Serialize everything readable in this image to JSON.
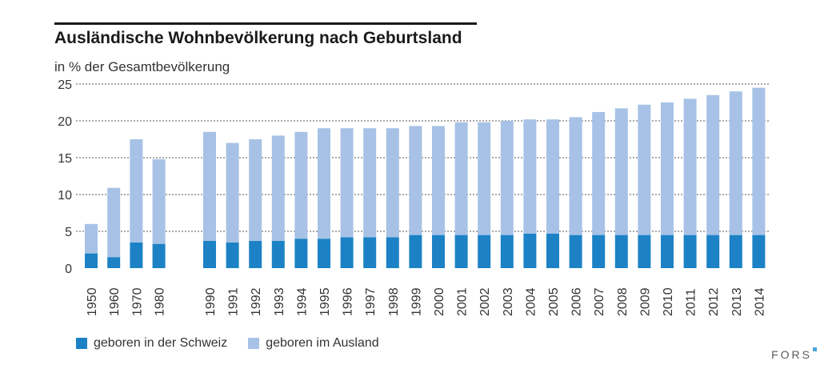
{
  "title": "Ausländische Wohnbevölkerung nach Geburtsland",
  "subtitle": "in % der Gesamtbevölkerung",
  "brand": "FORS",
  "colors": {
    "dark_blue": "#1c82c5",
    "light_blue": "#a7c2e6",
    "grid": "#555555",
    "rule": "#1a1a1a"
  },
  "chart_data": {
    "type": "bar",
    "stacked": true,
    "title": "Ausländische Wohnbevölkerung nach Geburtsland",
    "ylabel": "in % der Gesamtbevölkerung",
    "ylim": [
      0,
      25
    ],
    "yticks": [
      0,
      5,
      10,
      15,
      20,
      25
    ],
    "grid": true,
    "legend_position": "bottom",
    "categories": [
      "1950",
      "1960",
      "1970",
      "1980",
      "1990",
      "1991",
      "1992",
      "1993",
      "1994",
      "1995",
      "1996",
      "1997",
      "1998",
      "1999",
      "2000",
      "2001",
      "2002",
      "2003",
      "2004",
      "2005",
      "2006",
      "2007",
      "2008",
      "2009",
      "2010",
      "2011",
      "2012",
      "2013",
      "2014"
    ],
    "series": [
      {
        "name": "geboren in der Schweiz",
        "color": "#1c82c5",
        "values": [
          2.0,
          1.5,
          3.5,
          3.3,
          3.7,
          3.5,
          3.7,
          3.7,
          4.0,
          4.0,
          4.2,
          4.2,
          4.2,
          4.5,
          4.5,
          4.5,
          4.5,
          4.5,
          4.7,
          4.7,
          4.5,
          4.5,
          4.5,
          4.5,
          4.5,
          4.5,
          4.5,
          4.5,
          4.5
        ]
      },
      {
        "name": "geboren im Ausland",
        "color": "#a7c2e6",
        "values": [
          4.0,
          9.4,
          14.0,
          11.5,
          14.8,
          13.5,
          13.8,
          14.3,
          14.5,
          15.0,
          14.8,
          14.8,
          14.8,
          14.8,
          14.8,
          15.3,
          15.3,
          15.5,
          15.5,
          15.5,
          16.0,
          16.7,
          17.2,
          17.7,
          18.0,
          18.5,
          19.0,
          19.5,
          20.0
        ]
      }
    ]
  }
}
